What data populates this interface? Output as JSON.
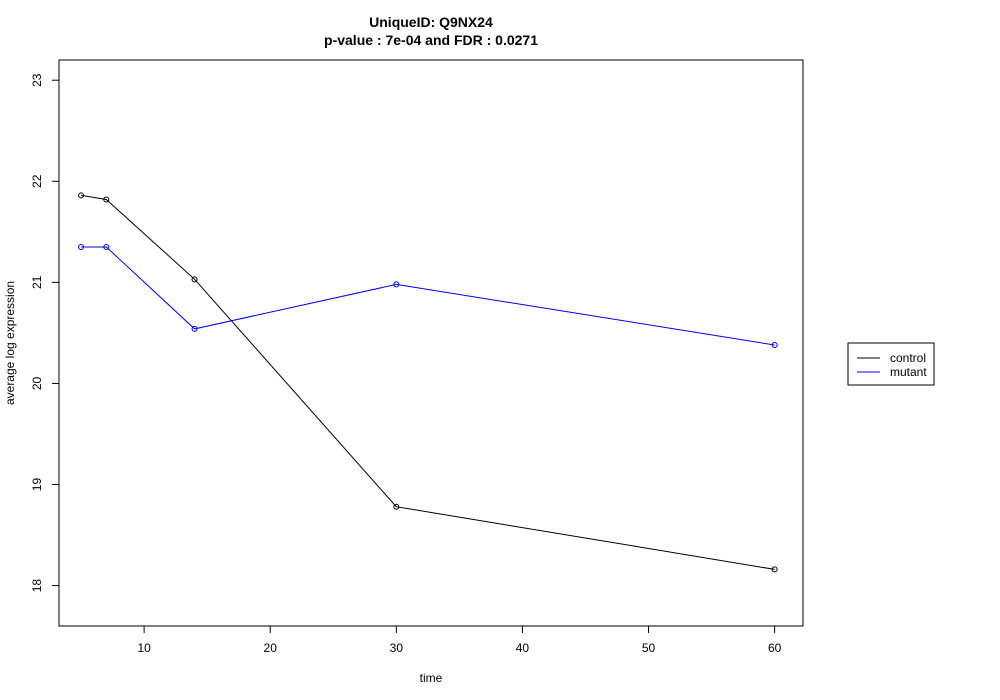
{
  "chart_data": {
    "type": "line",
    "title": "UniqueID: Q9NX24",
    "subtitle": "p-value : 7e-04 and FDR : 0.0271",
    "xlabel": "time",
    "ylabel": "average log expression",
    "xlim": [
      3.25,
      62.25
    ],
    "ylim": [
      17.6,
      23.2
    ],
    "x_ticks": [
      10,
      20,
      30,
      40,
      50,
      60
    ],
    "y_ticks": [
      18,
      19,
      20,
      21,
      22,
      23
    ],
    "grid": false,
    "legend_position": "right",
    "series": [
      {
        "name": "control",
        "color": "#000000",
        "x": [
          5,
          7,
          14,
          30,
          60
        ],
        "y": [
          21.86,
          21.82,
          21.03,
          18.78,
          18.16
        ]
      },
      {
        "name": "mutant",
        "color": "#0000ff",
        "x": [
          5,
          7,
          14,
          30,
          60
        ],
        "y": [
          21.35,
          21.35,
          20.54,
          20.98,
          20.38
        ]
      }
    ]
  }
}
